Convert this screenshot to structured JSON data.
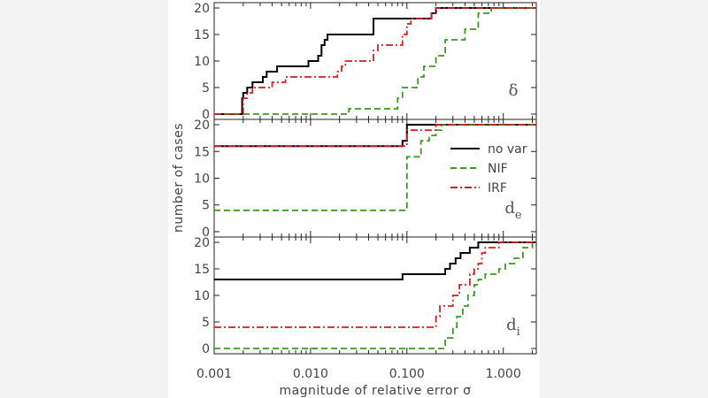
{
  "chart_data": {
    "type": "line",
    "xlabel": "magnitude of relative error σ",
    "ylabel": "number of cases",
    "x_scale": "log",
    "xlim": [
      0.001,
      2.2
    ],
    "ylim": [
      -1,
      21
    ],
    "x_tick_labels": [
      "0.001",
      "0.010",
      "0.100",
      "1.000"
    ],
    "x_tick_values": [
      0.001,
      0.01,
      0.1,
      1.0
    ],
    "y_tick_labels": [
      "0",
      "5",
      "10",
      "15",
      "20"
    ],
    "y_tick_values": [
      0,
      5,
      10,
      15,
      20
    ],
    "legend": [
      {
        "name": "no var",
        "color": "#000000",
        "style": "solid"
      },
      {
        "name": "NIF",
        "color": "#3a9a1f",
        "style": "dashed"
      },
      {
        "name": "IRF",
        "color": "#d81e1e",
        "style": "dashdot"
      }
    ],
    "panels": [
      {
        "label_main": "δ",
        "label_sub": "",
        "series": [
          {
            "name": "no var",
            "x": [
              0.001,
              0.00195,
              0.002,
              0.0022,
              0.0025,
              0.0028,
              0.0032,
              0.0035,
              0.004,
              0.0045,
              0.0055,
              0.0065,
              0.0095,
              0.012,
              0.013,
              0.014,
              0.015,
              0.017,
              0.04,
              0.045,
              0.18,
              0.2
            ],
            "y": [
              0,
              3,
              4,
              5,
              6,
              6,
              7,
              8,
              8,
              9,
              9,
              9,
              10,
              11,
              13,
              14,
              15,
              15,
              15,
              18,
              19,
              20
            ]
          },
          {
            "name": "NIF",
            "x": [
              0.001,
              0.025,
              0.045,
              0.08,
              0.09,
              0.13,
              0.15,
              0.2,
              0.25,
              0.35,
              0.4,
              0.55,
              0.75,
              1.0
            ],
            "y": [
              0,
              1,
              1,
              3,
              5,
              7,
              9,
              11,
              14,
              14,
              16,
              19,
              20,
              20
            ]
          },
          {
            "name": "IRF",
            "x": [
              0.001,
              0.002,
              0.0022,
              0.0025,
              0.004,
              0.0045,
              0.0055,
              0.0065,
              0.019,
              0.021,
              0.023,
              0.04,
              0.045,
              0.05,
              0.09,
              0.1,
              0.11,
              0.18,
              0.2
            ],
            "y": [
              0,
              3,
              4,
              5,
              6,
              6,
              7,
              7,
              8,
              9,
              10,
              10,
              12,
              13,
              15,
              17,
              18,
              19,
              20
            ]
          }
        ]
      },
      {
        "label_main": "d",
        "label_sub": "e",
        "series": [
          {
            "name": "no var",
            "x": [
              0.001,
              0.09,
              0.1
            ],
            "y": [
              16,
              17,
              20
            ]
          },
          {
            "name": "NIF",
            "x": [
              0.001,
              0.075,
              0.1,
              0.14,
              0.17,
              0.2,
              0.23,
              0.28
            ],
            "y": [
              4,
              4,
              14,
              17,
              18,
              19,
              20,
              20
            ]
          },
          {
            "name": "IRF",
            "x": [
              0.001,
              0.1,
              0.2
            ],
            "y": [
              16,
              19,
              20
            ]
          }
        ]
      },
      {
        "label_main": "d",
        "label_sub": "i",
        "series": [
          {
            "name": "no var",
            "x": [
              0.001,
              0.09,
              0.2,
              0.25,
              0.28,
              0.32,
              0.36,
              0.45,
              0.55,
              0.7
            ],
            "y": [
              13,
              14,
              14,
              15,
              16,
              17,
              18,
              19,
              20,
              20
            ]
          },
          {
            "name": "NIF",
            "x": [
              0.001,
              0.065,
              0.25,
              0.3,
              0.33,
              0.38,
              0.43,
              0.5,
              0.55,
              0.65,
              0.9,
              1.05,
              1.3,
              1.6,
              2.0
            ],
            "y": [
              0,
              0,
              2,
              4,
              6,
              8,
              10,
              12,
              13,
              14,
              15,
              16,
              17,
              19,
              20
            ]
          },
          {
            "name": "IRF",
            "x": [
              0.001,
              0.18,
              0.2,
              0.22,
              0.25,
              0.3,
              0.35,
              0.45,
              0.5,
              0.55,
              0.6,
              0.65,
              0.9
            ],
            "y": [
              4,
              4,
              6,
              8,
              8,
              10,
              12,
              14,
              15,
              16,
              18,
              19,
              20
            ]
          }
        ]
      }
    ]
  }
}
